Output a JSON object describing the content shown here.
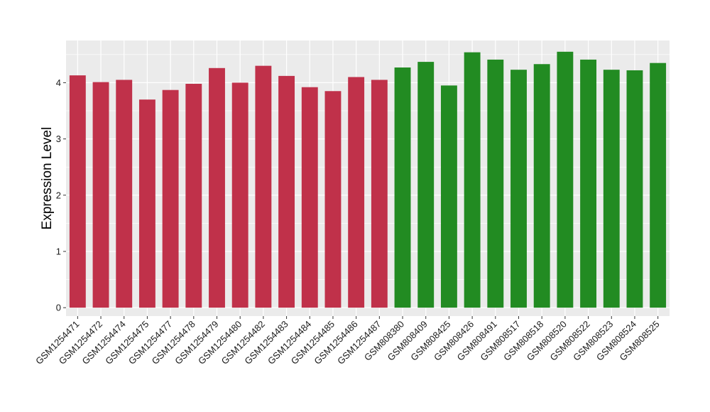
{
  "chart_data": {
    "type": "bar",
    "title": "",
    "xlabel": "",
    "ylabel": "Expression Level",
    "ylim": [
      -0.15,
      4.75
    ],
    "yticks": [
      0,
      1,
      2,
      3,
      4
    ],
    "grid": true,
    "legend": "none",
    "categories": [
      "GSM1254471",
      "GSM1254472",
      "GSM1254474",
      "GSM1254475",
      "GSM1254477",
      "GSM1254478",
      "GSM1254479",
      "GSM1254480",
      "GSM1254482",
      "GSM1254483",
      "GSM1254484",
      "GSM1254485",
      "GSM1254486",
      "GSM1254487",
      "GSM808380",
      "GSM808409",
      "GSM808425",
      "GSM808426",
      "GSM808491",
      "GSM808517",
      "GSM808518",
      "GSM808520",
      "GSM808522",
      "GSM808523",
      "GSM808524",
      "GSM808525"
    ],
    "values": [
      4.13,
      4.01,
      4.05,
      3.7,
      3.87,
      3.98,
      4.26,
      4.0,
      4.3,
      4.12,
      3.92,
      3.85,
      4.1,
      4.05,
      4.27,
      4.37,
      3.95,
      4.54,
      4.41,
      4.23,
      4.33,
      4.55,
      4.41,
      4.23,
      4.22,
      4.35
    ],
    "bar_colors": [
      "#c0314a",
      "#c0314a",
      "#c0314a",
      "#c0314a",
      "#c0314a",
      "#c0314a",
      "#c0314a",
      "#c0314a",
      "#c0314a",
      "#c0314a",
      "#c0314a",
      "#c0314a",
      "#c0314a",
      "#c0314a",
      "#228b22",
      "#228b22",
      "#228b22",
      "#228b22",
      "#228b22",
      "#228b22",
      "#228b22",
      "#228b22",
      "#228b22",
      "#228b22",
      "#228b22",
      "#228b22"
    ],
    "panel_background": "#ebebeb",
    "grid_color": "#ffffff"
  }
}
